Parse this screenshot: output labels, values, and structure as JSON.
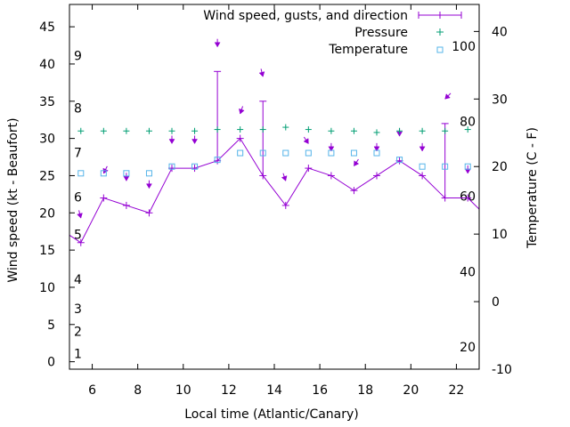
{
  "chart_data": {
    "type": "line",
    "xlabel": "Local time (Atlantic/Canary)",
    "ylabel": "Wind speed (kt - Beaufort)",
    "y2label": "Temperature (C - F)",
    "xlim": [
      5,
      23
    ],
    "ylim": [
      -1,
      48
    ],
    "y2lim": [
      -10,
      44
    ],
    "x_ticks": [
      6,
      8,
      10,
      12,
      14,
      16,
      18,
      20,
      22
    ],
    "y_ticks": [
      0,
      5,
      10,
      15,
      20,
      25,
      30,
      35,
      40,
      45
    ],
    "y2_ticks": [
      -10,
      0,
      10,
      20,
      30,
      40
    ],
    "beaufort_labels": [
      {
        "label": "1",
        "kt": 1.1
      },
      {
        "label": "2",
        "kt": 4.1
      },
      {
        "label": "3",
        "kt": 7.1
      },
      {
        "label": "4",
        "kt": 11.1
      },
      {
        "label": "5",
        "kt": 17.1
      },
      {
        "label": "6",
        "kt": 22.1
      },
      {
        "label": "7",
        "kt": 28.1
      },
      {
        "label": "8",
        "kt": 34.1
      },
      {
        "label": "9",
        "kt": 41.1
      }
    ],
    "fahrenheit_labels": [
      {
        "label": "20",
        "celsius": -6.7
      },
      {
        "label": "40",
        "celsius": 4.4
      },
      {
        "label": "60",
        "celsius": 15.6
      },
      {
        "label": "80",
        "celsius": 26.7
      },
      {
        "label": "100",
        "celsius": 37.8
      }
    ],
    "legend": {
      "wind": "Wind speed, gusts, and direction",
      "pressure": "Pressure",
      "temperature": "Temperature"
    },
    "series": [
      {
        "name": "Wind speed, gusts, and direction",
        "color": "#9400d3",
        "x": [
          4.5,
          5.5,
          6.5,
          7.5,
          8.5,
          9.5,
          10.5,
          11.5,
          12.5,
          13.5,
          14.5,
          15.5,
          16.5,
          17.5,
          18.5,
          19.5,
          20.5,
          21.5,
          22.5,
          23.5
        ],
        "wind_speed": [
          18,
          16,
          22,
          21,
          20,
          26,
          26,
          27,
          30,
          25,
          21,
          26,
          25,
          23,
          25,
          27,
          25,
          22,
          22,
          19
        ],
        "gust": [
          18,
          16,
          22,
          21,
          20,
          26,
          26,
          39,
          30,
          35,
          21,
          26,
          25,
          23,
          25,
          27,
          25,
          32,
          22,
          19
        ],
        "arrow_tip_kt": [
          null,
          19.3,
          25.3,
          24.3,
          23.3,
          29.3,
          29.3,
          42.3,
          33.3,
          38.3,
          24.3,
          29.3,
          28.3,
          26.3,
          28.3,
          30.3,
          28.3,
          35.3,
          25.3,
          null
        ],
        "arrow_dx": [
          0,
          0.5,
          -0.5,
          0,
          0,
          0,
          0,
          0,
          -0.5,
          0.5,
          0.5,
          1,
          0,
          -1,
          0,
          0,
          0,
          -1,
          0,
          0
        ],
        "arrow_dy": [
          0,
          2,
          1,
          1.5,
          1.5,
          1.5,
          1.5,
          2,
          1.5,
          2,
          1.5,
          1.5,
          2,
          1.5,
          1,
          1,
          1,
          1,
          1.5,
          0
        ]
      },
      {
        "name": "Pressure",
        "color": "#009e73",
        "x": [
          5.5,
          6.5,
          7.5,
          8.5,
          9.5,
          10.5,
          11.5,
          12.5,
          13.5,
          14.5,
          15.5,
          16.5,
          17.5,
          18.5,
          19.5,
          20.5,
          21.5,
          22.5
        ],
        "values_kt_scale": [
          31,
          31,
          31,
          31,
          31,
          31,
          31.2,
          31.2,
          31.2,
          31.5,
          31.2,
          31,
          31,
          30.8,
          31,
          31,
          31,
          31.2
        ]
      },
      {
        "name": "Temperature",
        "color": "#56b4e9",
        "x": [
          5.5,
          6.5,
          7.5,
          8.5,
          9.5,
          10.5,
          11.5,
          12.5,
          13.5,
          14.5,
          15.5,
          16.5,
          17.5,
          18.5,
          19.5,
          20.5,
          21.5,
          22.5
        ],
        "celsius": [
          19,
          19,
          19,
          19,
          20,
          20,
          21,
          22,
          22,
          22,
          22,
          22,
          22,
          22,
          21,
          20,
          20,
          20
        ]
      }
    ]
  }
}
